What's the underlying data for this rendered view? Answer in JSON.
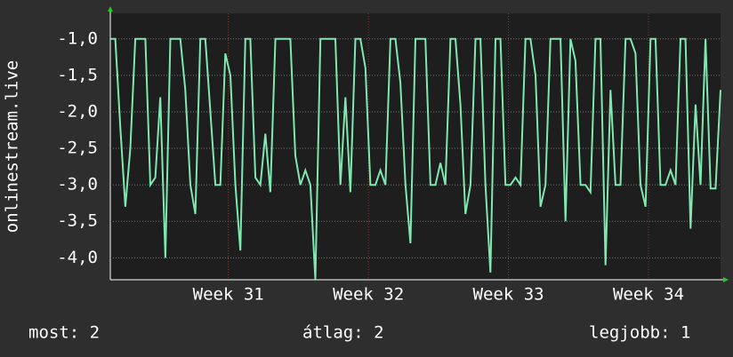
{
  "chart_data": {
    "type": "line",
    "y_label": "onlinestream.live",
    "x": [
      0,
      0.25,
      0.5,
      0.75,
      1,
      1.25,
      1.5,
      1.75,
      2,
      2.25,
      2.5,
      2.75,
      3,
      3.25,
      3.5,
      3.75,
      4,
      4.25,
      4.5,
      4.75,
      5,
      5.25,
      5.5,
      5.75,
      6,
      6.25,
      6.5,
      6.75,
      7,
      7.25,
      7.5,
      7.75,
      8,
      8.25,
      8.5,
      8.75,
      9,
      9.25,
      9.5,
      9.75,
      10,
      10.25,
      10.5,
      10.75,
      11,
      11.25,
      11.5,
      11.75,
      12,
      12.25,
      12.5,
      12.75,
      13,
      13.25,
      13.5,
      13.75,
      14,
      14.25,
      14.5,
      14.75,
      15,
      15.25,
      15.5,
      15.75,
      16,
      16.25,
      16.5,
      16.75,
      17,
      17.25,
      17.5,
      17.75,
      18,
      18.25,
      18.5,
      18.75,
      19,
      19.25,
      19.5,
      19.75,
      20,
      20.25,
      20.5,
      20.75,
      21,
      21.25,
      21.5,
      21.75,
      22,
      22.25,
      22.5,
      22.75,
      23,
      23.25,
      23.5,
      23.75,
      24,
      24.25,
      24.5,
      24.75,
      25,
      25.25,
      25.5,
      25.75,
      26,
      26.25,
      26.5,
      26.75,
      27,
      27.25,
      27.5,
      27.75,
      28,
      28.25,
      28.5,
      28.75,
      29,
      29.25,
      29.5,
      29.75,
      30,
      30.25,
      30.5
    ],
    "series": [
      {
        "color": "#7fe8b0",
        "values": [
          -1,
          -1,
          -2.2,
          -3.3,
          -2.5,
          -1,
          -1,
          -1,
          -3,
          -2.9,
          -1.8,
          -4,
          -1,
          -1,
          -1,
          -1.7,
          -3,
          -3.4,
          -1,
          -1,
          -2,
          -3,
          -3,
          -1.2,
          -1.5,
          -3,
          -3.9,
          -1,
          -1,
          -2.9,
          -3,
          -2.3,
          -3.1,
          -1,
          -1,
          -1,
          -1,
          -2.6,
          -3,
          -2.8,
          -3,
          -4.3,
          -1,
          -1,
          -1,
          -1,
          -3,
          -1.8,
          -3.1,
          -1,
          -1,
          -1.4,
          -3,
          -3,
          -2.8,
          -3,
          -1,
          -1,
          -1.6,
          -3,
          -3.8,
          -1,
          -1,
          -1,
          -3,
          -3,
          -2.7,
          -3,
          -1,
          -1,
          -1.9,
          -3.4,
          -3,
          -1,
          -1,
          -3,
          -4.2,
          -1,
          -1,
          -3,
          -3,
          -2.9,
          -3,
          -1,
          -1,
          -1.5,
          -3.3,
          -3,
          -1,
          -1,
          -1,
          -3.5,
          -1,
          -1.3,
          -3,
          -3,
          -3.1,
          -1,
          -1,
          -4.1,
          -1.7,
          -3,
          -3,
          -1,
          -1,
          -1.2,
          -3,
          -3.3,
          -1,
          -1,
          -3,
          -3,
          -2.8,
          -3,
          -1,
          -1,
          -3.6,
          -1.9,
          -3,
          -1,
          -3.05,
          -3.05,
          -1.7
        ]
      }
    ],
    "xlim": [
      0,
      30.5
    ],
    "xticks": [
      {
        "value": 5.9,
        "label": "Week 31"
      },
      {
        "value": 12.9,
        "label": "Week 32"
      },
      {
        "value": 19.9,
        "label": "Week 33"
      },
      {
        "value": 26.9,
        "label": "Week 34"
      }
    ],
    "ylim": [
      -4.3,
      -0.65
    ],
    "yticks": [
      {
        "value": -1,
        "label": "-1,0"
      },
      {
        "value": -1.5,
        "label": "-1,5"
      },
      {
        "value": -2,
        "label": "-2,0"
      },
      {
        "value": -2.5,
        "label": "-2,5"
      },
      {
        "value": -3,
        "label": "-3,0"
      },
      {
        "value": -3.5,
        "label": "-3,5"
      },
      {
        "value": -4,
        "label": "-4,0"
      }
    ],
    "grid": true,
    "legend": [
      "most: 2",
      "átlag: 2",
      "legjobb: 1"
    ]
  }
}
